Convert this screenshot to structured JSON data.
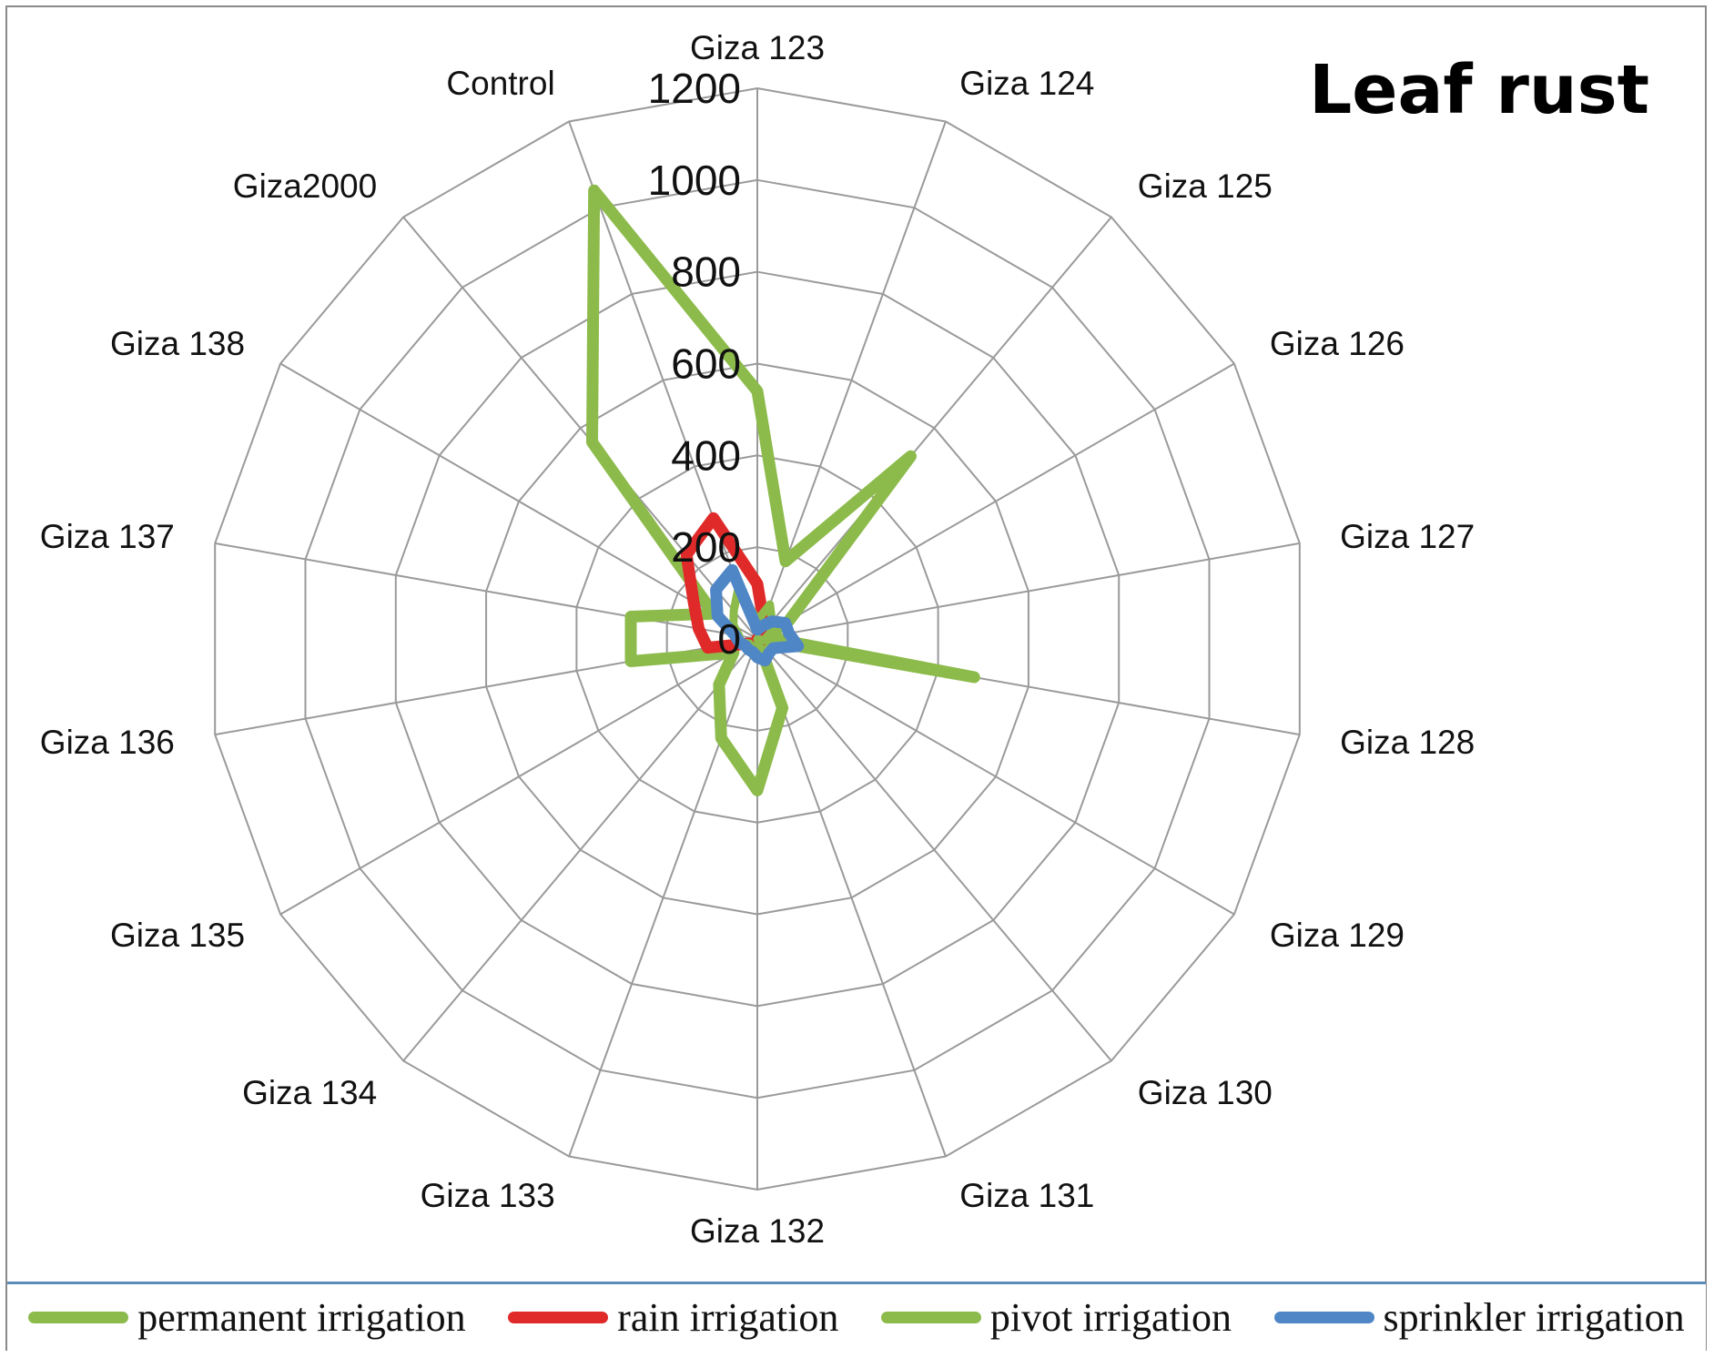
{
  "chart_data": {
    "type": "radar",
    "title": "Leaf rust",
    "categories": [
      "Giza 123",
      "Giza 124",
      "Giza 125",
      "Giza 126",
      "Giza 127",
      "Giza 128",
      "Giza 129",
      "Giza 130",
      "Giza 131",
      "Giza 132",
      "Giza 133",
      "Giza 134",
      "Giza 135",
      "Giza 136",
      "Giza 137",
      "Giza 138",
      "Giza2000",
      "Control"
    ],
    "radial_ticks": [
      "0",
      "200",
      "400",
      "600",
      "800",
      "1000",
      "1200"
    ],
    "rlim": [
      0,
      1200
    ],
    "grid": true,
    "legend_position": "bottom",
    "series": [
      {
        "name": "permanent irrigation",
        "color": "#8dbb4b",
        "values": [
          540,
          180,
          520,
          80,
          20,
          480,
          0,
          0,
          160,
          330,
          230,
          130,
          60,
          280,
          280,
          110,
          560,
          1040
        ]
      },
      {
        "name": "rain irrigation",
        "color": "#e02a2a",
        "values": [
          120,
          40,
          30,
          20,
          10,
          10,
          0,
          0,
          10,
          20,
          20,
          20,
          20,
          110,
          130,
          160,
          240,
          280
        ]
      },
      {
        "name": "pivot irrigation",
        "color": "#8dbb4b",
        "values": [
          40,
          80,
          50,
          40,
          20,
          30,
          0,
          0,
          20,
          30,
          20,
          20,
          20,
          40,
          40,
          60,
          80,
          120
        ]
      },
      {
        "name": "sprinkler irrigation",
        "color": "#4f86c6",
        "values": [
          20,
          30,
          50,
          70,
          70,
          90,
          40,
          40,
          50,
          40,
          30,
          30,
          30,
          40,
          50,
          100,
          140,
          160
        ]
      }
    ]
  }
}
